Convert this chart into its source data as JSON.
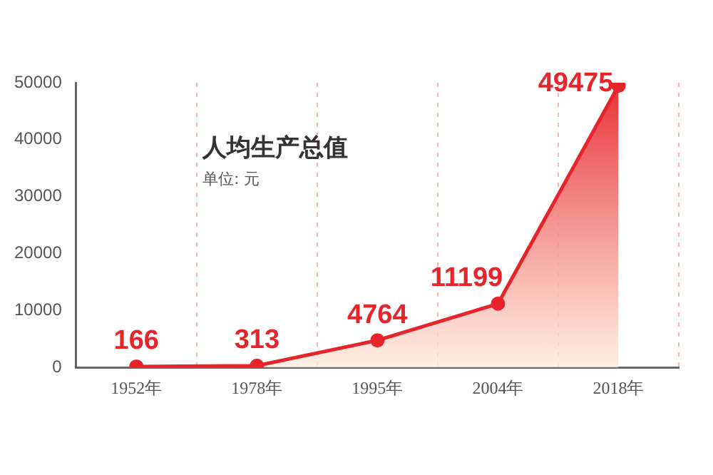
{
  "chart_data": {
    "type": "area",
    "title": "人均生产总值",
    "subtitle": "单位: 元",
    "categories": [
      "1952年",
      "1978年",
      "1995年",
      "2004年",
      "2018年"
    ],
    "series": [
      {
        "color": "#e8242b",
        "values": [
          166,
          313,
          4764,
          11199,
          49475
        ]
      }
    ],
    "ylim": [
      0,
      50000
    ],
    "yticks": [
      0,
      10000,
      20000,
      30000,
      40000,
      50000
    ],
    "grid": "x",
    "legend": false,
    "marker": "circle",
    "data_labels": true
  }
}
